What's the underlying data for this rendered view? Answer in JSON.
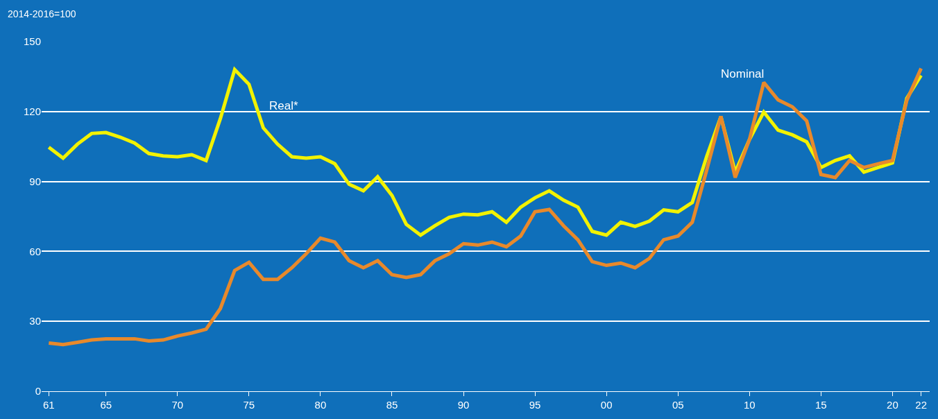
{
  "chart_data": {
    "type": "line",
    "ylabel": "2014-2016=100",
    "x": [
      1961,
      1962,
      1963,
      1964,
      1965,
      1966,
      1967,
      1968,
      1969,
      1970,
      1971,
      1972,
      1973,
      1974,
      1975,
      1976,
      1977,
      1978,
      1979,
      1980,
      1981,
      1982,
      1983,
      1984,
      1985,
      1986,
      1987,
      1988,
      1989,
      1990,
      1991,
      1992,
      1993,
      1994,
      1995,
      1996,
      1997,
      1998,
      1999,
      2000,
      2001,
      2002,
      2003,
      2004,
      2005,
      2006,
      2007,
      2008,
      2009,
      2010,
      2011,
      2012,
      2013,
      2014,
      2015,
      2016,
      2017,
      2018,
      2019,
      2020,
      2021,
      2022
    ],
    "series": [
      {
        "color": "#f2f200",
        "values": [
          104.7,
          100,
          106,
          110.6,
          111,
          109,
          106.5,
          102,
          101,
          100.6,
          101.5,
          99,
          117,
          138,
          131.7,
          113,
          106,
          100.6,
          100,
          100.6,
          97.6,
          88.8,
          86,
          92,
          84,
          71.6,
          67,
          71,
          74.6,
          76,
          75.7,
          77,
          72.5,
          79,
          83,
          86,
          82,
          79,
          68.6,
          67,
          72.5,
          70.7,
          73,
          77.8,
          77,
          81,
          100.6,
          117.8,
          94,
          108,
          119.8,
          112,
          110,
          107,
          96,
          99,
          101,
          94,
          96,
          98,
          125.7,
          135.5
        ]
      },
      {
        "color": "#e8892b",
        "values": [
          20.7,
          20,
          21,
          22,
          22.5,
          22.5,
          22.5,
          21.6,
          22,
          23.7,
          25,
          26.6,
          35.5,
          51.8,
          55.3,
          48,
          48,
          53,
          59,
          65.7,
          64,
          56,
          53,
          56,
          50,
          48.8,
          50,
          56,
          59,
          63.3,
          62.7,
          64,
          62,
          66.6,
          77,
          78,
          71,
          65,
          55.6,
          54,
          55,
          53,
          57,
          65,
          66.6,
          72.5,
          94.7,
          118,
          91.7,
          108,
          132.5,
          125,
          122,
          116,
          93,
          91.7,
          99,
          96,
          97.6,
          99,
          124.8,
          138.5
        ]
      }
    ],
    "annotations": [
      "Real*",
      "Nominal"
    ],
    "xlim": [
      1960.5,
      2022.6
    ],
    "ylim": [
      0,
      150
    ],
    "xticks": [
      {
        "value": 1961,
        "label": "61"
      },
      {
        "value": 1965,
        "label": "65"
      },
      {
        "value": 1970,
        "label": "70"
      },
      {
        "value": 1975,
        "label": "75"
      },
      {
        "value": 1980,
        "label": "80"
      },
      {
        "value": 1985,
        "label": "85"
      },
      {
        "value": 1990,
        "label": "90"
      },
      {
        "value": 1995,
        "label": "95"
      },
      {
        "value": 2000,
        "label": "00"
      },
      {
        "value": 2005,
        "label": "05"
      },
      {
        "value": 2010,
        "label": "10"
      },
      {
        "value": 2015,
        "label": "15"
      },
      {
        "value": 2020,
        "label": "20"
      },
      {
        "value": 2022,
        "label": "22"
      }
    ],
    "yticks": [
      0,
      30,
      60,
      90,
      120,
      150
    ],
    "grid": "y",
    "line_style": "solid",
    "marker": "none"
  }
}
